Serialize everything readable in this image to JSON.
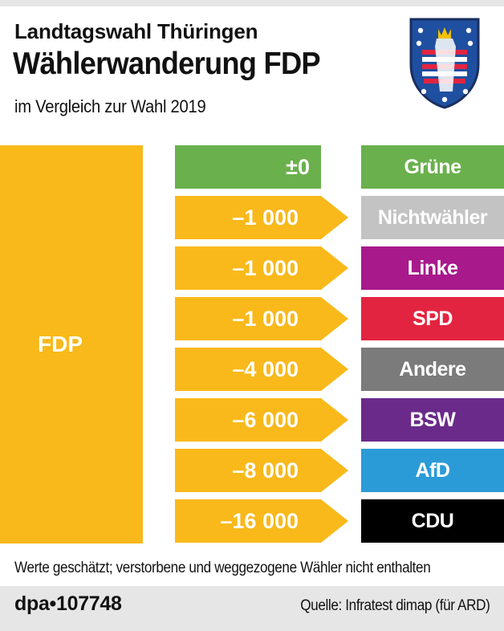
{
  "header": {
    "kicker": "Landtagswahl Thüringen",
    "title": "Wählerwanderung FDP",
    "subtitle": "im Vergleich zur Wahl 2019"
  },
  "chart_data": {
    "type": "bar",
    "source_party": "FDP",
    "categories": [
      "Grüne",
      "Nichtwähler",
      "Linke",
      "SPD",
      "Andere",
      "BSW",
      "AfD",
      "CDU"
    ],
    "values": [
      0,
      -1000,
      -1000,
      -1000,
      -4000,
      -6000,
      -8000,
      -16000
    ],
    "value_labels": [
      "±0",
      "–1 000",
      "–1 000",
      "–1 000",
      "–4 000",
      "–6 000",
      "–8 000",
      "–16 000"
    ],
    "colors": {
      "source": "#f9b91b",
      "targets": [
        "#6ab04c",
        "#c3c3c3",
        "#a8198c",
        "#e32440",
        "#7b7b7b",
        "#6a2a8a",
        "#2b9bd7",
        "#000000"
      ]
    }
  },
  "footer": {
    "note": "Werte geschätzt; verstorbene und weggezogene Wähler nicht enthalten",
    "agency": "dpa•107748",
    "source": "Quelle: Infratest dimap (für ARD)"
  }
}
